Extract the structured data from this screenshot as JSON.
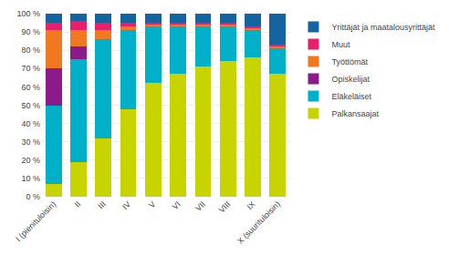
{
  "chart_data": {
    "type": "bar",
    "stacked": true,
    "categories": [
      "I (pienituloisin)",
      "II",
      "III",
      "IV",
      "V",
      "VI",
      "VII",
      "VIII",
      "IX",
      "X (suurituloisin)"
    ],
    "series": [
      {
        "name": "Palkansaajat",
        "color": "#c8d400",
        "values": [
          7,
          19,
          32,
          48,
          62,
          67,
          71,
          74,
          76,
          67
        ]
      },
      {
        "name": "Eläkeläiset",
        "color": "#00b0c8",
        "values": [
          43,
          56,
          54,
          43,
          31,
          26,
          22,
          19,
          15,
          14
        ]
      },
      {
        "name": "Opiskelijat",
        "color": "#8b1a8b",
        "values": [
          20,
          7,
          0,
          0,
          0,
          0,
          0,
          0,
          0,
          0
        ]
      },
      {
        "name": "Työttömät",
        "color": "#f07820",
        "values": [
          21,
          9,
          5,
          2,
          1,
          1,
          1,
          1,
          1,
          1
        ]
      },
      {
        "name": "Muut",
        "color": "#e8206c",
        "values": [
          4,
          5,
          4,
          2,
          1,
          1,
          1,
          1,
          1,
          1
        ]
      },
      {
        "name": "Yrittäjät ja maatalousyrittäjät",
        "color": "#1464a0",
        "values": [
          5,
          4,
          5,
          5,
          5,
          5,
          5,
          5,
          7,
          17
        ]
      }
    ],
    "ylim": [
      0,
      100
    ],
    "yticks": [
      {
        "value": 0,
        "label": "0 %"
      },
      {
        "value": 10,
        "label": "10 %"
      },
      {
        "value": 20,
        "label": "20 %"
      },
      {
        "value": 30,
        "label": "30 %"
      },
      {
        "value": 40,
        "label": "40 %"
      },
      {
        "value": 50,
        "label": "50 %"
      },
      {
        "value": 60,
        "label": "60 %"
      },
      {
        "value": 70,
        "label": "70 %"
      },
      {
        "value": 80,
        "label": "80 %"
      },
      {
        "value": 90,
        "label": "90 %"
      },
      {
        "value": 100,
        "label": "100 %"
      }
    ],
    "grid": true,
    "legend": "right"
  }
}
